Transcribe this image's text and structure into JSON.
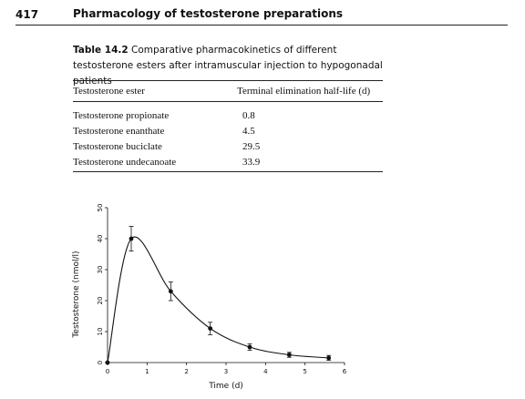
{
  "header": {
    "page_number": "417",
    "running_title": "Pharmacology of testosterone preparations"
  },
  "table": {
    "caption_label": "Table 14.2",
    "caption_text": "Comparative pharmacokinetics of different testosterone esters after intramuscular injection to hypogonadal patients",
    "columns": [
      "Testosterone ester",
      "Terminal elimination half-life (d)"
    ],
    "rows": [
      {
        "ester": "Testosterone propionate",
        "half_life": "0.8"
      },
      {
        "ester": "Testosterone enanthate",
        "half_life": "4.5"
      },
      {
        "ester": "Testosterone buciclate",
        "half_life": "29.5"
      },
      {
        "ester": "Testosterone undecanoate",
        "half_life": "33.9"
      }
    ]
  },
  "chart_data": {
    "type": "line",
    "title": "",
    "xlabel": "Time (d)",
    "ylabel": "Testosterone (nmol/l)",
    "xlim": [
      0,
      6
    ],
    "ylim": [
      0,
      50
    ],
    "xticks": [
      0,
      1,
      2,
      3,
      4,
      5,
      6
    ],
    "yticks": [
      0,
      10,
      20,
      30,
      40,
      50
    ],
    "grid": false,
    "series": [
      {
        "x": [
          0,
          0.6,
          1.6,
          2.6,
          3.6,
          4.6,
          5.6
        ],
        "y": [
          0,
          40,
          23,
          11,
          5,
          2.5,
          1.5
        ],
        "yerr": [
          0,
          4,
          3,
          2,
          1,
          0.8,
          0.8
        ]
      }
    ]
  }
}
